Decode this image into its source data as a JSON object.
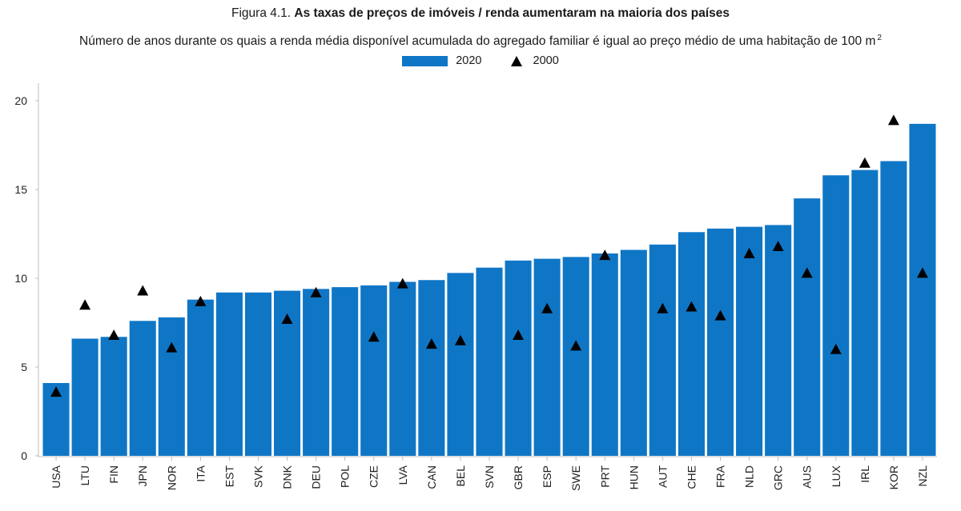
{
  "title": {
    "prefix": "Figura 4.1. ",
    "main": "As taxas de preços de imóveis / renda aumentaram na maioria dos países"
  },
  "subtitle": {
    "text": "Número de anos durante os quais a renda média disponível acumulada do agregado familiar é igual ao preço médio de uma habitação de 100 m",
    "superscript": "2"
  },
  "colors": {
    "bar": "#0f76c6",
    "marker": "#000000",
    "axis": "#bdbdbd"
  },
  "chart_data": {
    "type": "bar",
    "title": "As taxas de preços de imóveis / renda aumentaram na maioria dos países",
    "xlabel": "",
    "ylabel": "",
    "ylim": [
      0,
      20
    ],
    "yticks": [
      0,
      5,
      10,
      15,
      20
    ],
    "legend_position": "top-center",
    "categories": [
      "USA",
      "LTU",
      "FIN",
      "JPN",
      "NOR",
      "ITA",
      "EST",
      "SVK",
      "DNK",
      "DEU",
      "POL",
      "CZE",
      "LVA",
      "CAN",
      "BEL",
      "SVN",
      "GBR",
      "ESP",
      "SWE",
      "PRT",
      "HUN",
      "AUT",
      "CHE",
      "FRA",
      "NLD",
      "GRC",
      "AUS",
      "LUX",
      "IRL",
      "KOR",
      "NZL"
    ],
    "series": [
      {
        "name": "2020",
        "kind": "bar",
        "values": [
          4.1,
          6.6,
          6.7,
          7.6,
          7.8,
          8.8,
          9.2,
          9.2,
          9.3,
          9.4,
          9.5,
          9.6,
          9.8,
          9.9,
          10.3,
          10.6,
          11.0,
          11.1,
          11.2,
          11.4,
          11.6,
          11.9,
          12.6,
          12.8,
          12.9,
          13.0,
          14.5,
          15.8,
          16.1,
          16.6,
          18.7
        ]
      },
      {
        "name": "2000",
        "kind": "marker",
        "values": [
          3.6,
          8.5,
          6.8,
          9.3,
          6.1,
          8.7,
          null,
          null,
          7.7,
          9.2,
          null,
          6.7,
          9.7,
          6.3,
          6.5,
          null,
          6.8,
          8.3,
          6.2,
          11.3,
          null,
          8.3,
          8.4,
          7.9,
          11.4,
          11.8,
          10.3,
          6.0,
          16.5,
          18.9,
          10.3
        ]
      }
    ]
  }
}
